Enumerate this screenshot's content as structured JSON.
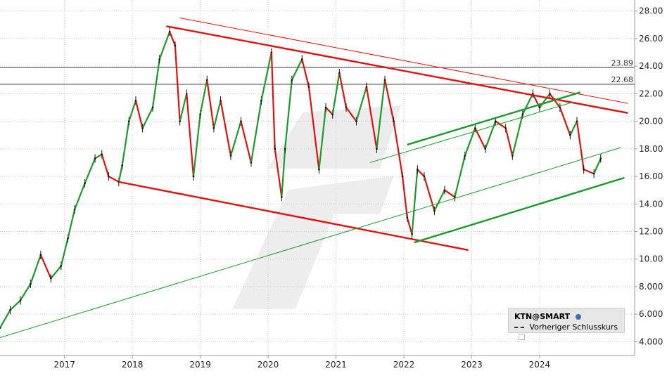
{
  "chart_data": {
    "type": "line",
    "symbol": "KTN@SMART",
    "legend": {
      "symbol": "KTN@SMART",
      "previous_close_label": "Vorheriger Schlusskurs"
    },
    "x_tick_labels": [
      "2017",
      "2018",
      "2019",
      "2020",
      "2021",
      "2022",
      "2023",
      "2024"
    ],
    "y_tick_labels": [
      "4.000",
      "6.000",
      "8.000",
      "10.00",
      "12.00",
      "14.00",
      "16.00",
      "18.00",
      "20.00",
      "22.00",
      "24.00",
      "26.00",
      "28.00"
    ],
    "ylim": [
      3,
      28.8
    ],
    "xlim": [
      2016.05,
      2025.4
    ],
    "grid": true,
    "horizontal_levels": [
      {
        "label": "23.89",
        "value": 23.89
      },
      {
        "label": "22.68",
        "value": 22.68
      }
    ],
    "series": [
      {
        "x": [
          2016.05,
          2016.2,
          2016.35,
          2016.5,
          2016.65,
          2016.8,
          2016.95,
          2017.05,
          2017.15,
          2017.3,
          2017.45,
          2017.55,
          2017.65,
          2017.8,
          2017.85,
          2017.95,
          2018.05,
          2018.15,
          2018.3,
          2018.4,
          2018.55,
          2018.63,
          2018.7,
          2018.8,
          2018.9,
          2019.0,
          2019.1,
          2019.2,
          2019.3,
          2019.45,
          2019.6,
          2019.75,
          2019.9,
          2020.05,
          2020.1,
          2020.2,
          2020.25,
          2020.35,
          2020.5,
          2020.6,
          2020.75,
          2020.85,
          2020.95,
          2021.05,
          2021.15,
          2021.3,
          2021.45,
          2021.6,
          2021.72,
          2021.85,
          2021.98,
          2022.05,
          2022.12,
          2022.2,
          2022.3,
          2022.45,
          2022.6,
          2022.75,
          2022.9,
          2023.05,
          2023.2,
          2023.35,
          2023.5,
          2023.6,
          2023.75,
          2023.9,
          2024.0,
          2024.15,
          2024.3,
          2024.45,
          2024.55,
          2024.65,
          2024.8,
          2024.9
        ],
        "y": [
          5.0,
          6.3,
          7.0,
          8.2,
          10.3,
          8.6,
          9.5,
          11.5,
          13.6,
          15.5,
          17.3,
          17.6,
          16.0,
          15.6,
          16.8,
          20.0,
          21.5,
          19.5,
          21.0,
          24.5,
          26.5,
          25.5,
          20.0,
          22.0,
          16.0,
          20.5,
          23.0,
          19.5,
          21.5,
          17.5,
          20.0,
          17.0,
          21.5,
          25.0,
          18.0,
          14.5,
          18.0,
          23.0,
          24.5,
          22.5,
          16.5,
          21.0,
          20.5,
          23.5,
          21.0,
          20.0,
          22.5,
          18.0,
          23.0,
          20.0,
          16.0,
          13.0,
          11.8,
          16.5,
          16.0,
          13.5,
          15.0,
          14.5,
          17.5,
          19.5,
          18.0,
          20.0,
          19.5,
          17.5,
          20.5,
          22.0,
          21.0,
          22.0,
          21.0,
          19.0,
          20.0,
          16.5,
          16.2,
          17.3
        ]
      }
    ],
    "trendlines": [
      {
        "color": "#e01010",
        "from": [
          2018.5,
          26.9
        ],
        "to": [
          2025.3,
          20.6
        ]
      },
      {
        "color": "#e01010",
        "from": [
          2018.7,
          27.5
        ],
        "to": [
          2025.3,
          21.3
        ]
      },
      {
        "color": "#e01010",
        "from": [
          2017.8,
          15.6
        ],
        "to": [
          2022.95,
          10.65
        ]
      },
      {
        "color": "#1a9a2a",
        "from": [
          2022.15,
          11.2
        ],
        "to": [
          2025.25,
          15.9
        ]
      },
      {
        "color": "#1a9a2a",
        "from": [
          2022.05,
          18.3
        ],
        "to": [
          2024.6,
          22.1
        ]
      },
      {
        "color": "#1a9a2a",
        "from": [
          2016.05,
          4.3
        ],
        "to": [
          2025.2,
          18.1
        ]
      },
      {
        "color": "#1a9a2a",
        "from": [
          2021.5,
          17.0
        ],
        "to": [
          2024.5,
          21.4
        ]
      }
    ]
  }
}
